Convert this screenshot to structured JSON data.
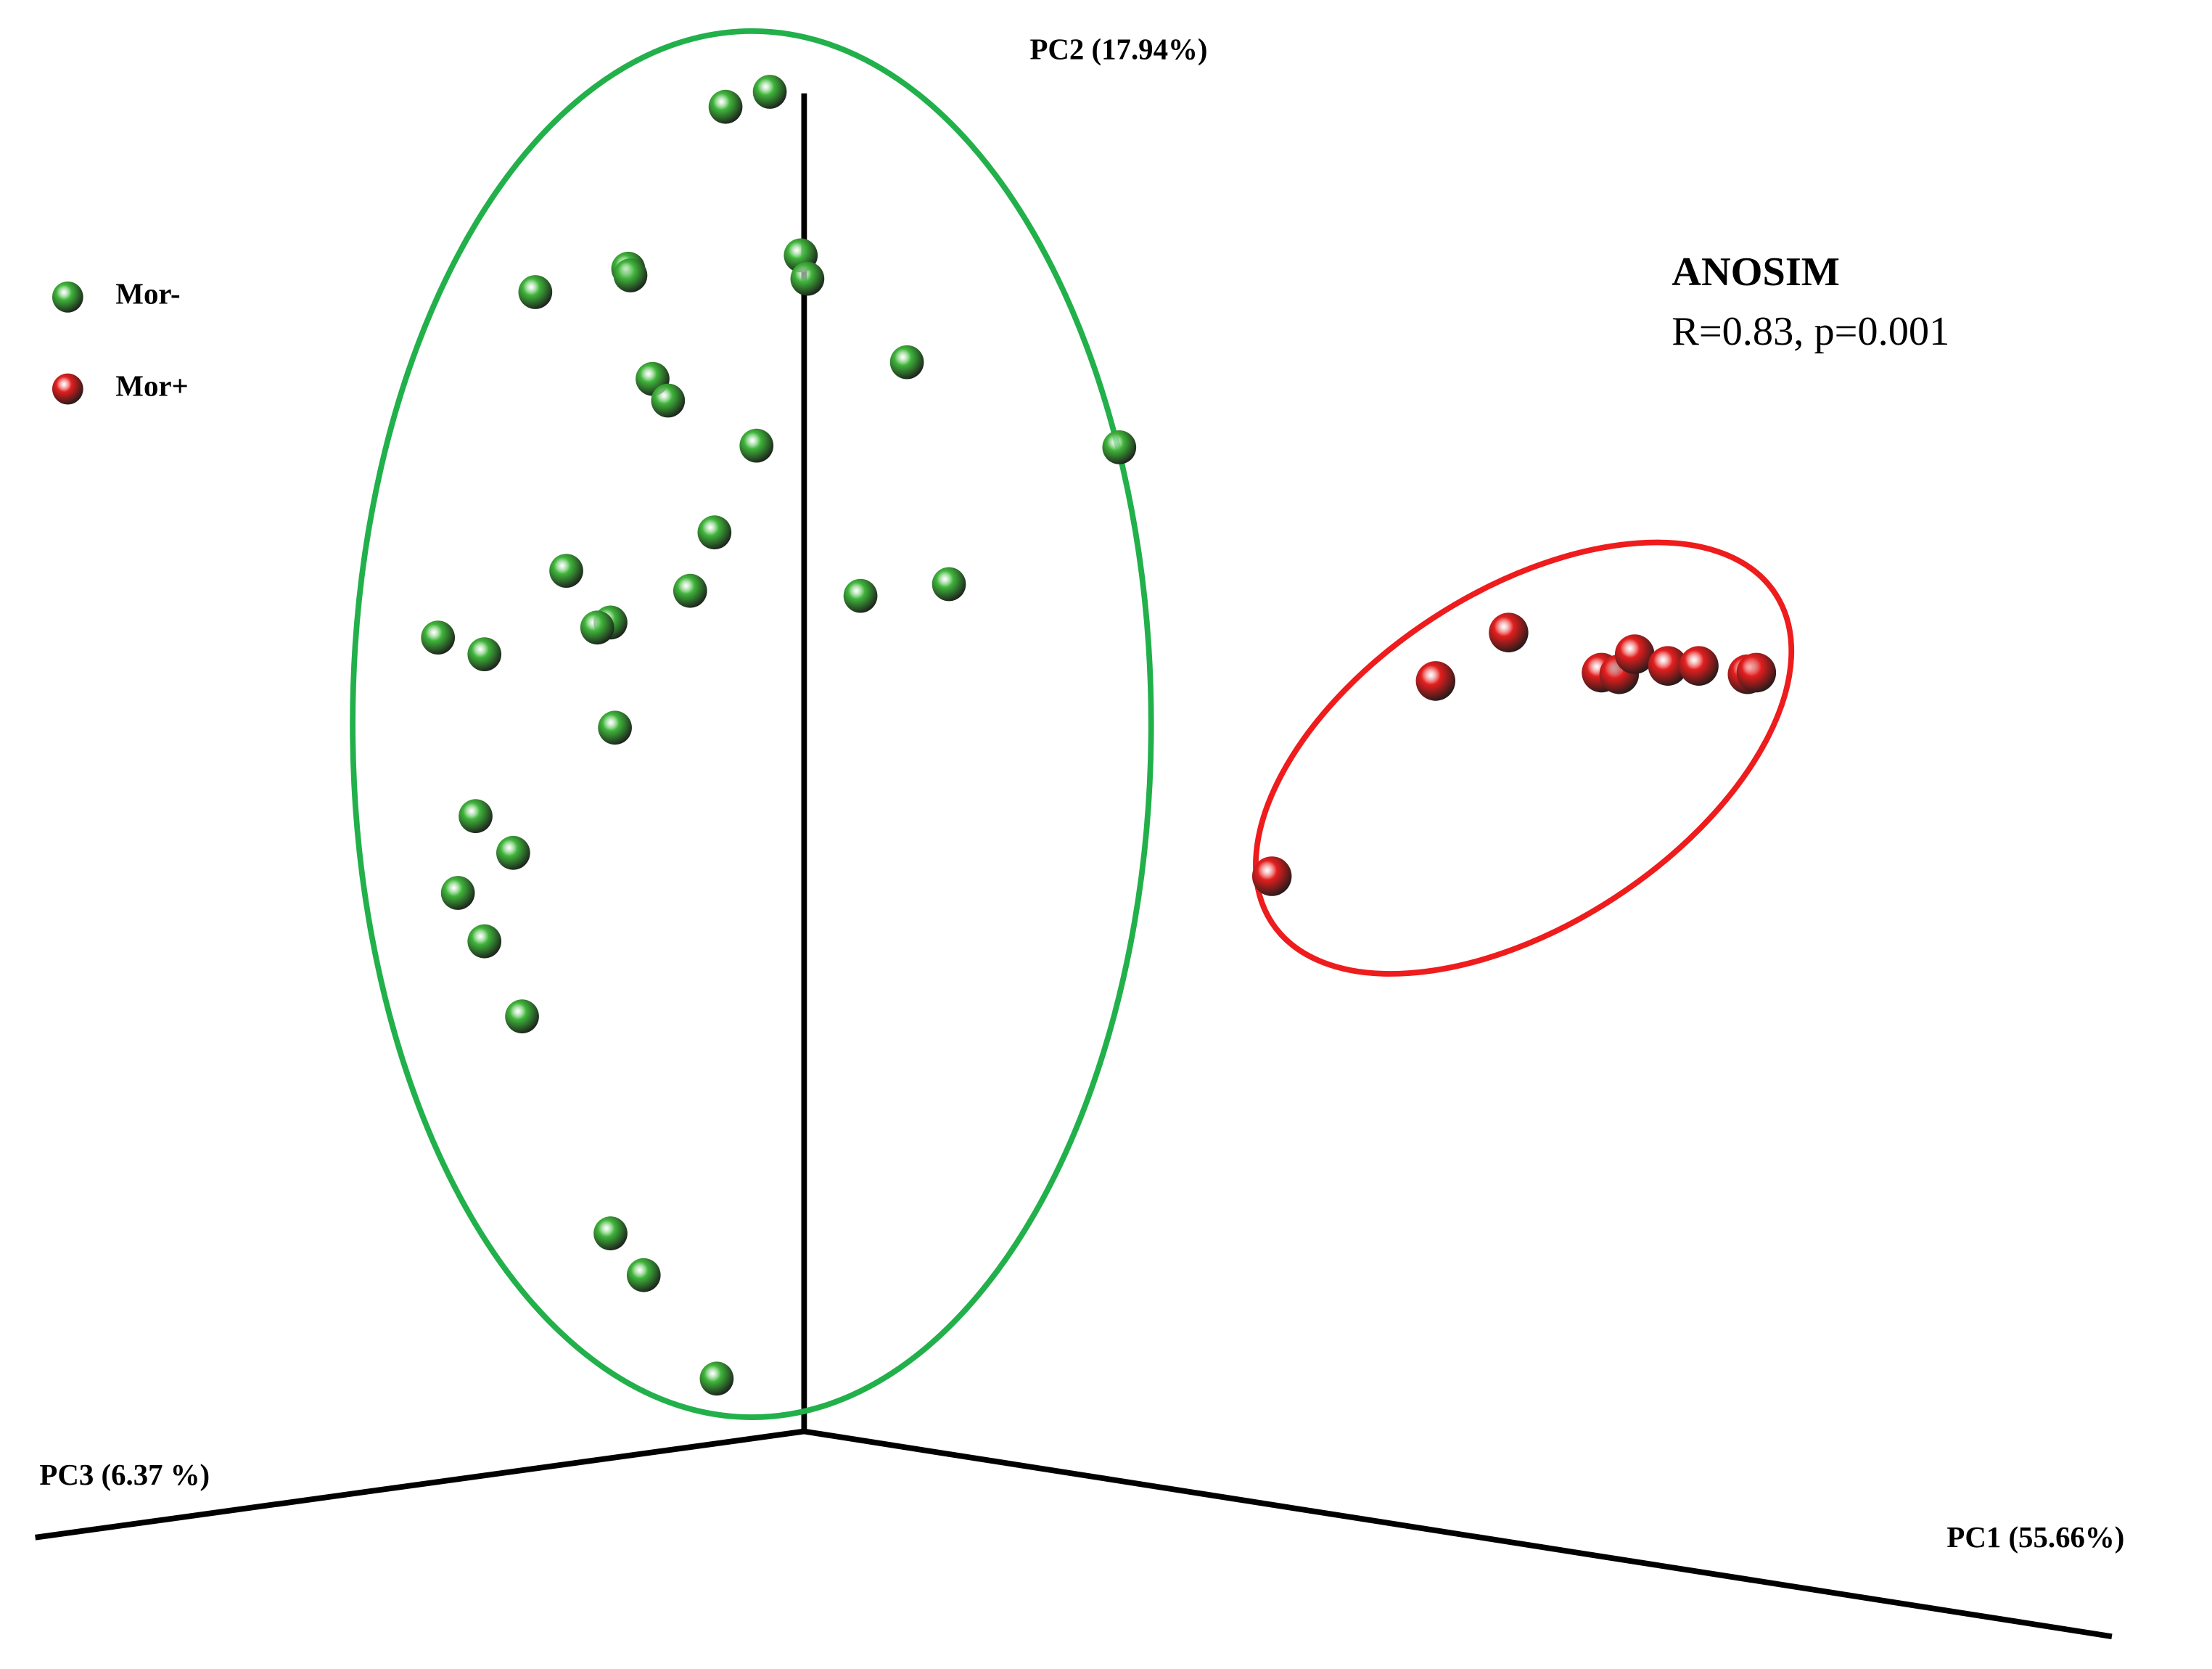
{
  "chart_data": {
    "type": "scatter",
    "x_label": "PC1 (55.66%)",
    "y_label": "PC2 (17.94%)",
    "z_label": "PC3 (6.37 %)",
    "annotation_title": "ANOSIM",
    "annotation_text": "R=0.83, p=0.001",
    "xlim": [
      0,
      100
    ],
    "ylim": [
      0,
      100
    ],
    "series": [
      {
        "name": "Mor-",
        "color": "#3fb53a",
        "x": [
          32.8,
          34.8,
          24.2,
          28.4,
          28.5,
          36.2,
          36.5,
          41.0,
          29.5,
          30.2,
          34.2,
          50.6,
          32.3,
          25.6,
          31.2,
          38.9,
          42.9,
          19.8,
          21.9,
          27.6,
          27.0,
          27.8,
          21.5,
          23.2,
          20.7,
          21.9,
          23.6,
          27.6,
          29.1,
          32.4
        ],
        "y": [
          93.6,
          94.5,
          82.5,
          83.9,
          83.5,
          84.7,
          83.3,
          78.3,
          77.3,
          76.0,
          73.3,
          73.2,
          68.1,
          65.8,
          64.6,
          64.3,
          65.0,
          61.8,
          60.8,
          62.7,
          62.4,
          56.4,
          51.1,
          48.9,
          46.5,
          43.6,
          39.1,
          26.1,
          23.6,
          17.4
        ]
      },
      {
        "name": "Mor+",
        "color": "#e41e1e",
        "x": [
          68.2,
          64.9,
          72.4,
          73.2,
          73.9,
          75.4,
          76.8,
          79.0,
          79.4,
          57.5
        ],
        "y": [
          62.1,
          59.2,
          59.7,
          59.6,
          60.8,
          60.1,
          60.1,
          59.6,
          59.7,
          47.5
        ]
      }
    ]
  }
}
